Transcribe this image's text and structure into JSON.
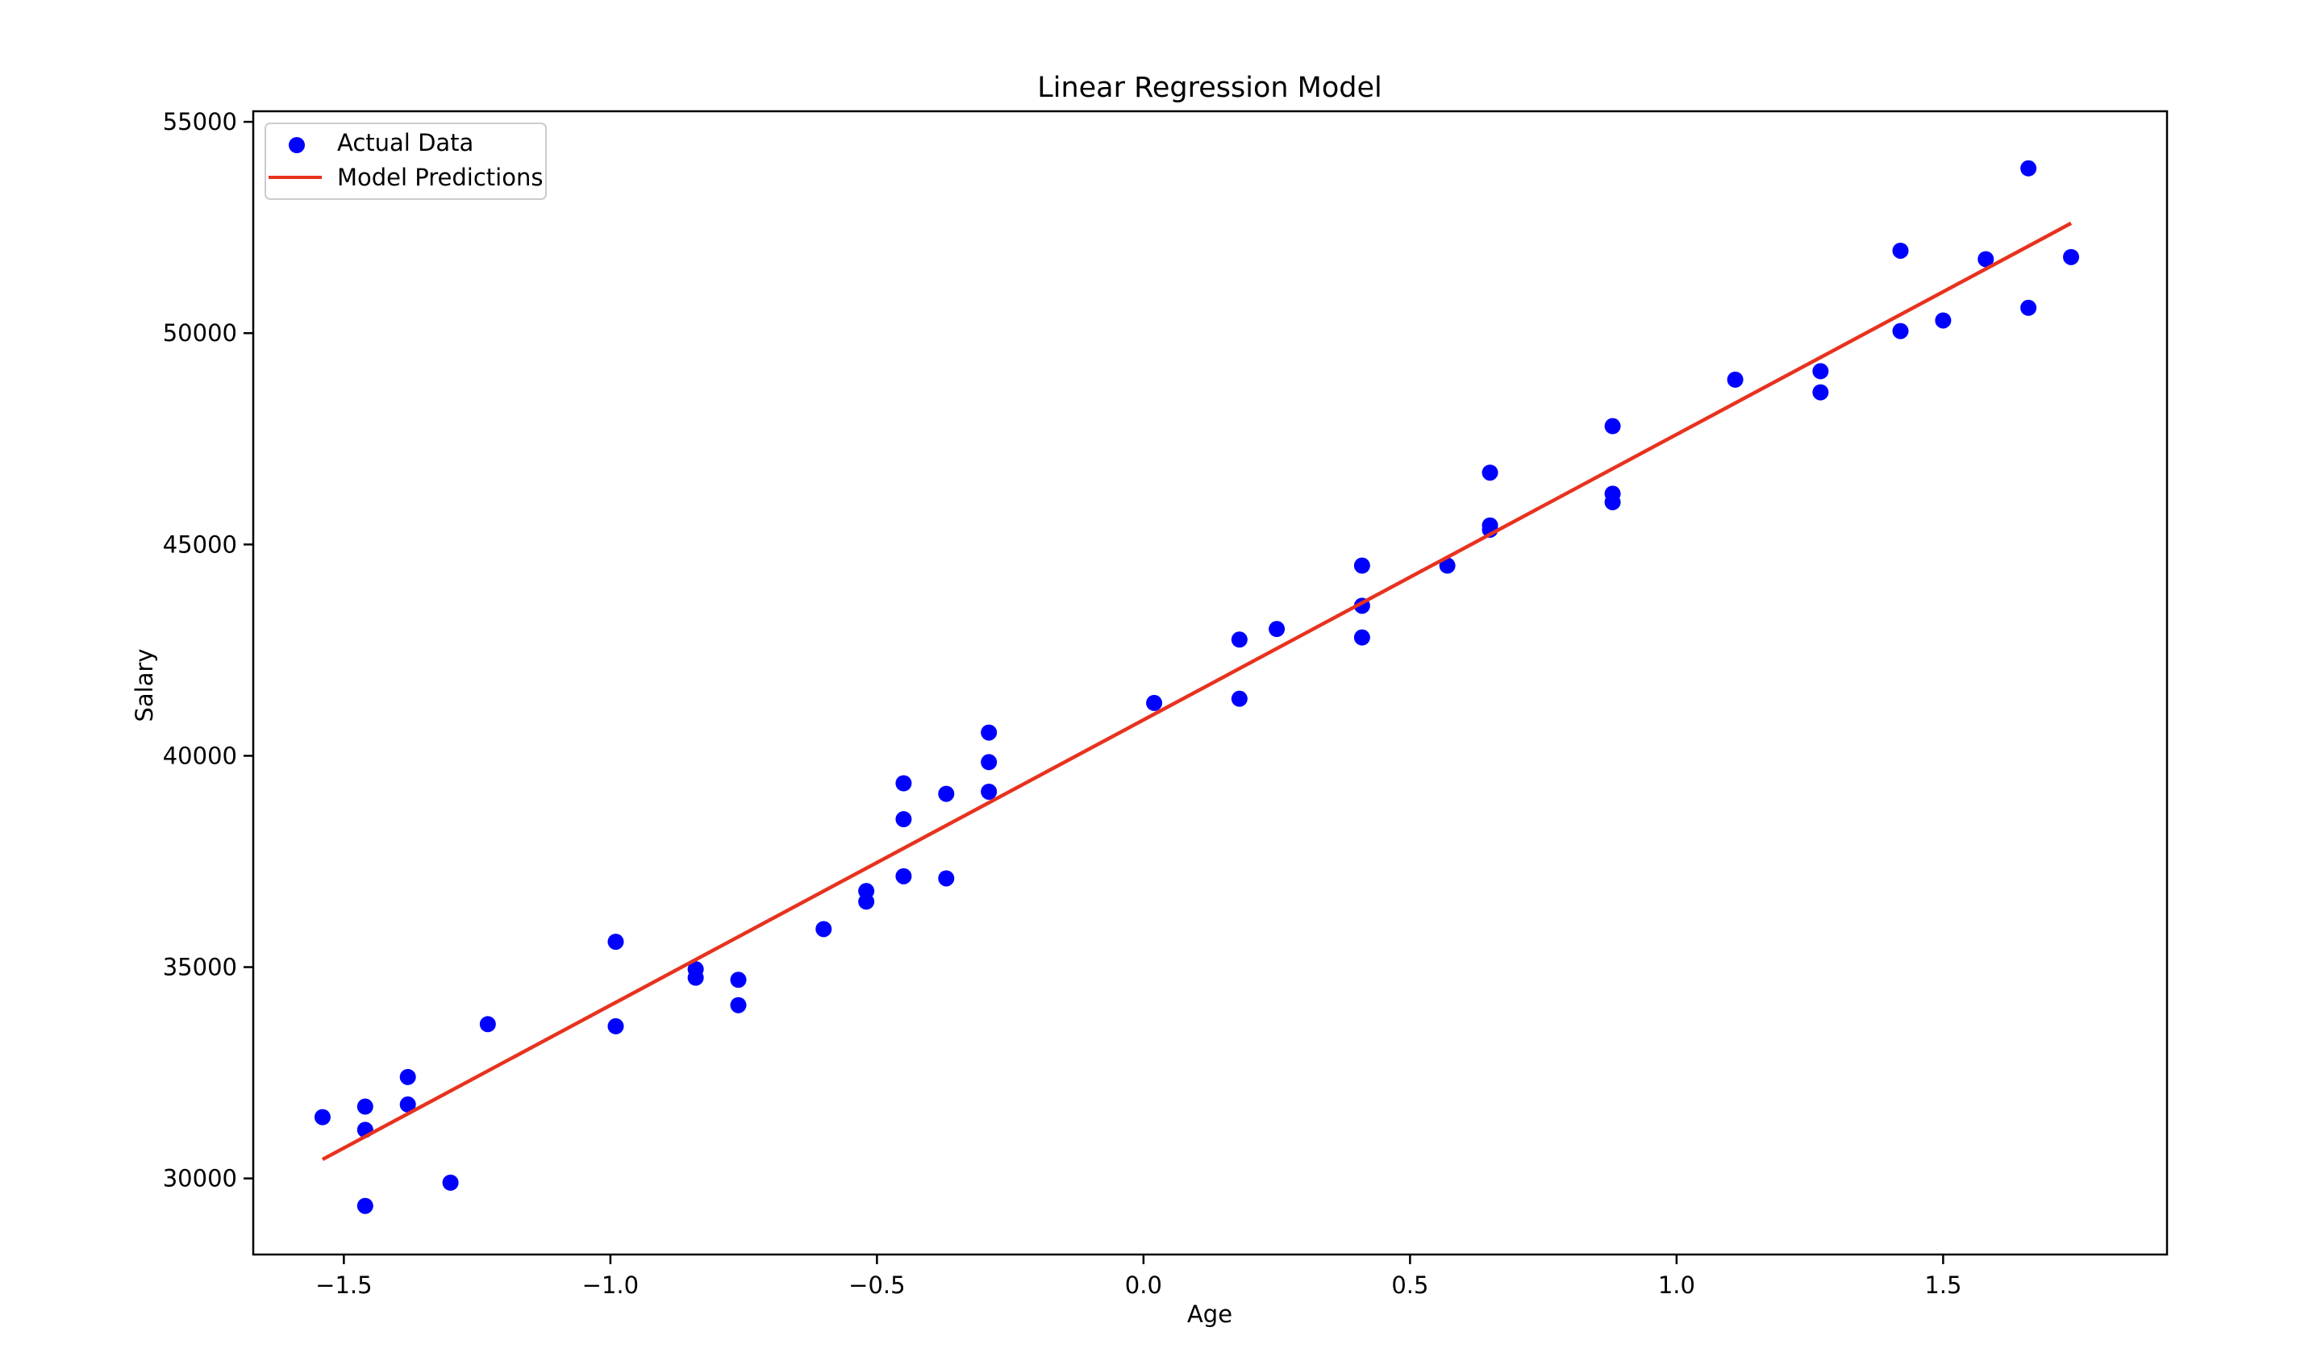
{
  "chart_data": {
    "type": "scatter",
    "title": "Linear Regression Model",
    "xlabel": "Age",
    "ylabel": "Salary",
    "xlim": [
      -1.67,
      1.92
    ],
    "ylim": [
      28200,
      55250
    ],
    "xticks": [
      -1.5,
      -1.0,
      -0.5,
      0.0,
      0.5,
      1.0,
      1.5
    ],
    "xtick_labels": [
      "−1.5",
      "−1.0",
      "−0.5",
      "0.0",
      "0.5",
      "1.0",
      "1.5"
    ],
    "yticks": [
      30000,
      35000,
      40000,
      45000,
      50000,
      55000
    ],
    "ytick_labels": [
      "30000",
      "35000",
      "40000",
      "45000",
      "50000",
      "55000"
    ],
    "grid": false,
    "legend_position": "top-left",
    "legend": [
      "Actual Data",
      "Model Predictions"
    ],
    "colors": {
      "scatter": "#0000ff",
      "line": "#e8321e",
      "axes": "#000000",
      "background": "#ffffff"
    },
    "scatter_series": {
      "name": "Actual Data",
      "points": [
        [
          -1.54,
          31450
        ],
        [
          -1.46,
          31700
        ],
        [
          -1.46,
          31150
        ],
        [
          -1.46,
          29350
        ],
        [
          -1.38,
          32400
        ],
        [
          -1.38,
          31750
        ],
        [
          -1.3,
          29900
        ],
        [
          -1.23,
          33650
        ],
        [
          -0.99,
          35600
        ],
        [
          -0.99,
          33600
        ],
        [
          -0.84,
          34950
        ],
        [
          -0.84,
          34750
        ],
        [
          -0.76,
          34700
        ],
        [
          -0.76,
          34100
        ],
        [
          -0.6,
          35900
        ],
        [
          -0.52,
          36800
        ],
        [
          -0.52,
          36550
        ],
        [
          -0.45,
          39350
        ],
        [
          -0.45,
          38500
        ],
        [
          -0.45,
          37150
        ],
        [
          -0.37,
          39100
        ],
        [
          -0.37,
          37100
        ],
        [
          -0.29,
          40550
        ],
        [
          -0.29,
          39850
        ],
        [
          -0.29,
          39150
        ],
        [
          0.02,
          41250
        ],
        [
          0.18,
          42750
        ],
        [
          0.18,
          41350
        ],
        [
          0.25,
          43000
        ],
        [
          0.41,
          44500
        ],
        [
          0.41,
          43550
        ],
        [
          0.41,
          42800
        ],
        [
          0.57,
          44500
        ],
        [
          0.65,
          46700
        ],
        [
          0.65,
          45450
        ],
        [
          0.65,
          45350
        ],
        [
          0.88,
          47800
        ],
        [
          0.88,
          46200
        ],
        [
          0.88,
          46000
        ],
        [
          1.11,
          48900
        ],
        [
          1.27,
          49100
        ],
        [
          1.27,
          48600
        ],
        [
          1.42,
          51950
        ],
        [
          1.42,
          50050
        ],
        [
          1.5,
          50300
        ],
        [
          1.58,
          51750
        ],
        [
          1.66,
          53900
        ],
        [
          1.66,
          50600
        ],
        [
          1.74,
          51800
        ]
      ]
    },
    "line_series": {
      "name": "Model Predictions",
      "x": [
        -1.54,
        1.74
      ],
      "y": [
        30450,
        52600
      ]
    }
  }
}
